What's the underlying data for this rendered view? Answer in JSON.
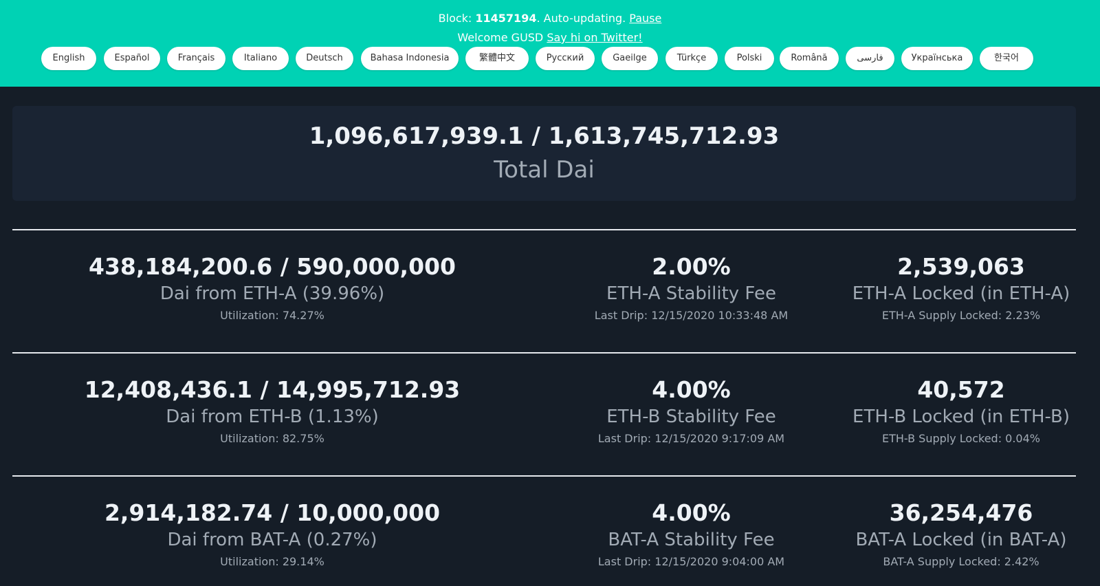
{
  "header": {
    "block_prefix": "Block: ",
    "block_number": "11457194",
    "auto_text": ". Auto-updating. ",
    "pause_link": "Pause",
    "welcome_text": "Welcome GUSD ",
    "twitter_link": "Say hi on Twitter!",
    "languages": [
      "English",
      "Español",
      "Français",
      "Italiano",
      "Deutsch",
      "Bahasa Indonesia",
      "繁體中文",
      "Русский",
      "Gaeilge",
      "Türkçe",
      "Polski",
      "Română",
      "فارسی",
      "Українська",
      "한국어"
    ]
  },
  "total": {
    "value": "1,096,617,939.1 / 1,613,745,712.93",
    "label": "Total Dai"
  },
  "collaterals": [
    {
      "dai_value": "438,184,200.6 / 590,000,000",
      "dai_label": "Dai from ETH-A (39.96%)",
      "utilization": "Utilization: 74.27%",
      "fee_value": "2.00%",
      "fee_label": "ETH-A Stability Fee",
      "last_drip": "Last Drip: 12/15/2020 10:33:48 AM",
      "locked_value": "2,539,063",
      "locked_label": "ETH-A Locked (in ETH-A)",
      "supply_locked": "ETH-A Supply Locked: 2.23%"
    },
    {
      "dai_value": "12,408,436.1 / 14,995,712.93",
      "dai_label": "Dai from ETH-B (1.13%)",
      "utilization": "Utilization: 82.75%",
      "fee_value": "4.00%",
      "fee_label": "ETH-B Stability Fee",
      "last_drip": "Last Drip: 12/15/2020 9:17:09 AM",
      "locked_value": "40,572",
      "locked_label": "ETH-B Locked (in ETH-B)",
      "supply_locked": "ETH-B Supply Locked: 0.04%"
    },
    {
      "dai_value": "2,914,182.74 / 10,000,000",
      "dai_label": "Dai from BAT-A (0.27%)",
      "utilization": "Utilization: 29.14%",
      "fee_value": "4.00%",
      "fee_label": "BAT-A Stability Fee",
      "last_drip": "Last Drip: 12/15/2020 9:04:00 AM",
      "locked_value": "36,254,476",
      "locked_label": "BAT-A Locked (in BAT-A)",
      "supply_locked": "BAT-A Supply Locked: 2.42%"
    }
  ],
  "colors": {
    "header_bg": "#00d2b4",
    "page_bg": "#151d27",
    "card_bg": "#1a2433"
  }
}
